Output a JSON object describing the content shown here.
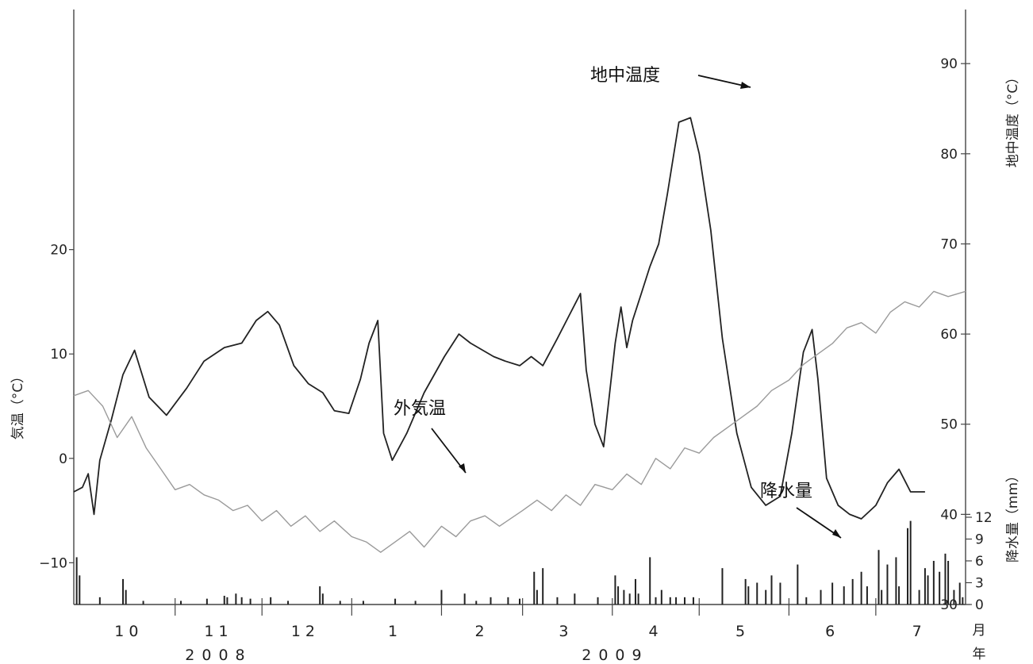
{
  "chart_data": {
    "type": "line",
    "annotations": {
      "soil_temp": "地中温度",
      "air_temp": "外気温",
      "precip": "降水量"
    },
    "axes": {
      "left": {
        "label": "気温（°C）",
        "range": [
          -14,
          43
        ],
        "ticks": [
          -10,
          0,
          10,
          20
        ],
        "tick_labels": [
          "−10",
          "0",
          "10",
          "20"
        ]
      },
      "right_soil": {
        "label": "地中温度（°C）",
        "range": [
          30,
          96
        ],
        "ticks": [
          30,
          40,
          50,
          60,
          70,
          80,
          90
        ],
        "tick_labels": [
          "30",
          "40",
          "50",
          "60",
          "70",
          "80",
          "90"
        ]
      },
      "right_precip": {
        "label": "降水量（mm）",
        "range": [
          0,
          12
        ],
        "ticks": [
          0,
          3,
          6,
          9,
          12
        ],
        "tick_labels": [
          "0",
          "3",
          "6",
          "9",
          "12"
        ]
      },
      "x": {
        "unit_month": "月",
        "unit_year": "年",
        "start": "2008-09-26",
        "end": "2009-07-31",
        "month_boundaries": [
          "2008-10-31",
          "2008-11-30",
          "2008-12-31",
          "2009-01-31",
          "2009-02-28",
          "2009-03-31",
          "2009-04-30",
          "2009-05-31",
          "2009-06-30"
        ],
        "month_labels": [
          {
            "text": "10",
            "date": "2008-10-15"
          },
          {
            "text": "11",
            "date": "2008-11-15"
          },
          {
            "text": "12",
            "date": "2008-12-15"
          },
          {
            "text": "1",
            "date": "2009-01-15"
          },
          {
            "text": "2",
            "date": "2009-02-14"
          },
          {
            "text": "3",
            "date": "2009-03-15"
          },
          {
            "text": "4",
            "date": "2009-04-15"
          },
          {
            "text": "5",
            "date": "2009-05-15"
          },
          {
            "text": "6",
            "date": "2009-06-15"
          },
          {
            "text": "7",
            "date": "2009-07-15"
          }
        ],
        "year_labels": [
          {
            "text": "2008",
            "date": "2008-11-15"
          },
          {
            "text": "2009",
            "date": "2009-04-01"
          }
        ]
      }
    },
    "series": [
      {
        "key": "soil_temperature",
        "axis": "right_soil",
        "color": "#222222",
        "points": [
          [
            "2008-09-26",
            42.5
          ],
          [
            "2008-09-29",
            43.0
          ],
          [
            "2008-10-01",
            44.5
          ],
          [
            "2008-10-03",
            40.0
          ],
          [
            "2008-10-05",
            46.0
          ],
          [
            "2008-10-09",
            50.5
          ],
          [
            "2008-10-13",
            55.5
          ],
          [
            "2008-10-17",
            58.2
          ],
          [
            "2008-10-22",
            53.0
          ],
          [
            "2008-10-28",
            51.0
          ],
          [
            "2008-11-04",
            54.0
          ],
          [
            "2008-11-10",
            57.0
          ],
          [
            "2008-11-17",
            58.5
          ],
          [
            "2008-11-23",
            59.0
          ],
          [
            "2008-11-28",
            61.5
          ],
          [
            "2008-12-02",
            62.5
          ],
          [
            "2008-12-06",
            61.0
          ],
          [
            "2008-12-11",
            56.5
          ],
          [
            "2008-12-16",
            54.5
          ],
          [
            "2008-12-21",
            53.5
          ],
          [
            "2008-12-25",
            51.5
          ],
          [
            "2008-12-30",
            51.2
          ],
          [
            "2009-01-03",
            55.0
          ],
          [
            "2009-01-06",
            59.0
          ],
          [
            "2009-01-09",
            61.5
          ],
          [
            "2009-01-11",
            49.0
          ],
          [
            "2009-01-14",
            46.0
          ],
          [
            "2009-01-19",
            49.0
          ],
          [
            "2009-01-25",
            53.5
          ],
          [
            "2009-02-01",
            57.5
          ],
          [
            "2009-02-06",
            60.0
          ],
          [
            "2009-02-10",
            59.0
          ],
          [
            "2009-02-18",
            57.5
          ],
          [
            "2009-02-22",
            57.0
          ],
          [
            "2009-02-27",
            56.5
          ],
          [
            "2009-03-03",
            57.5
          ],
          [
            "2009-03-07",
            56.5
          ],
          [
            "2009-03-12",
            59.5
          ],
          [
            "2009-03-16",
            62.0
          ],
          [
            "2009-03-20",
            64.5
          ],
          [
            "2009-03-22",
            56.0
          ],
          [
            "2009-03-25",
            50.0
          ],
          [
            "2009-03-28",
            47.5
          ],
          [
            "2009-04-01",
            59.0
          ],
          [
            "2009-04-03",
            63.0
          ],
          [
            "2009-04-05",
            58.5
          ],
          [
            "2009-04-07",
            61.5
          ],
          [
            "2009-04-10",
            64.5
          ],
          [
            "2009-04-13",
            67.5
          ],
          [
            "2009-04-16",
            70.0
          ],
          [
            "2009-04-19",
            75.5
          ],
          [
            "2009-04-23",
            83.5
          ],
          [
            "2009-04-27",
            84.0
          ],
          [
            "2009-04-30",
            80.0
          ],
          [
            "2009-05-04",
            71.5
          ],
          [
            "2009-05-08",
            59.5
          ],
          [
            "2009-05-13",
            49.0
          ],
          [
            "2009-05-18",
            43.0
          ],
          [
            "2009-05-23",
            41.0
          ],
          [
            "2009-05-28",
            42.0
          ],
          [
            "2009-06-01",
            49.0
          ],
          [
            "2009-06-05",
            58.0
          ],
          [
            "2009-06-08",
            60.5
          ],
          [
            "2009-06-10",
            55.0
          ],
          [
            "2009-06-13",
            44.0
          ],
          [
            "2009-06-17",
            41.0
          ],
          [
            "2009-06-21",
            40.0
          ],
          [
            "2009-06-25",
            39.5
          ],
          [
            "2009-06-30",
            41.0
          ],
          [
            "2009-07-04",
            43.5
          ],
          [
            "2009-07-08",
            45.0
          ],
          [
            "2009-07-12",
            42.5
          ],
          [
            "2009-07-17",
            42.5
          ]
        ]
      },
      {
        "key": "air_temperature",
        "axis": "left",
        "color": "#9a9a9a",
        "points": [
          [
            "2008-09-26",
            6.0
          ],
          [
            "2008-10-01",
            6.5
          ],
          [
            "2008-10-06",
            5.0
          ],
          [
            "2008-10-11",
            2.0
          ],
          [
            "2008-10-16",
            4.0
          ],
          [
            "2008-10-21",
            1.0
          ],
          [
            "2008-10-26",
            -1.0
          ],
          [
            "2008-10-31",
            -3.0
          ],
          [
            "2008-11-05",
            -2.5
          ],
          [
            "2008-11-10",
            -3.5
          ],
          [
            "2008-11-15",
            -4.0
          ],
          [
            "2008-11-20",
            -5.0
          ],
          [
            "2008-11-25",
            -4.5
          ],
          [
            "2008-11-30",
            -6.0
          ],
          [
            "2008-12-05",
            -5.0
          ],
          [
            "2008-12-10",
            -6.5
          ],
          [
            "2008-12-15",
            -5.5
          ],
          [
            "2008-12-20",
            -7.0
          ],
          [
            "2008-12-25",
            -6.0
          ],
          [
            "2008-12-31",
            -7.5
          ],
          [
            "2009-01-05",
            -8.0
          ],
          [
            "2009-01-10",
            -9.0
          ],
          [
            "2009-01-15",
            -8.0
          ],
          [
            "2009-01-20",
            -7.0
          ],
          [
            "2009-01-25",
            -8.5
          ],
          [
            "2009-01-31",
            -6.5
          ],
          [
            "2009-02-05",
            -7.5
          ],
          [
            "2009-02-10",
            -6.0
          ],
          [
            "2009-02-15",
            -5.5
          ],
          [
            "2009-02-20",
            -6.5
          ],
          [
            "2009-02-28",
            -5.0
          ],
          [
            "2009-03-05",
            -4.0
          ],
          [
            "2009-03-10",
            -5.0
          ],
          [
            "2009-03-15",
            -3.5
          ],
          [
            "2009-03-20",
            -4.5
          ],
          [
            "2009-03-25",
            -2.5
          ],
          [
            "2009-03-31",
            -3.0
          ],
          [
            "2009-04-05",
            -1.5
          ],
          [
            "2009-04-10",
            -2.5
          ],
          [
            "2009-04-15",
            0.0
          ],
          [
            "2009-04-20",
            -1.0
          ],
          [
            "2009-04-25",
            1.0
          ],
          [
            "2009-04-30",
            0.5
          ],
          [
            "2009-05-05",
            2.0
          ],
          [
            "2009-05-10",
            3.0
          ],
          [
            "2009-05-15",
            4.0
          ],
          [
            "2009-05-20",
            5.0
          ],
          [
            "2009-05-25",
            6.5
          ],
          [
            "2009-05-31",
            7.5
          ],
          [
            "2009-06-05",
            9.0
          ],
          [
            "2009-06-10",
            10.0
          ],
          [
            "2009-06-15",
            11.0
          ],
          [
            "2009-06-20",
            12.5
          ],
          [
            "2009-06-25",
            13.0
          ],
          [
            "2009-06-30",
            12.0
          ],
          [
            "2009-07-05",
            14.0
          ],
          [
            "2009-07-10",
            15.0
          ],
          [
            "2009-07-15",
            14.5
          ],
          [
            "2009-07-20",
            16.0
          ],
          [
            "2009-07-25",
            15.5
          ],
          [
            "2009-07-31",
            16.0
          ]
        ]
      }
    ],
    "precipitation_bars": {
      "axis": "right_precip",
      "color": "#222222",
      "values": [
        [
          "2008-09-27",
          6.5
        ],
        [
          "2008-09-28",
          4.0
        ],
        [
          "2008-10-05",
          1.0
        ],
        [
          "2008-10-13",
          3.5
        ],
        [
          "2008-10-14",
          2.0
        ],
        [
          "2008-10-20",
          0.5
        ],
        [
          "2008-11-02",
          0.5
        ],
        [
          "2008-11-11",
          0.8
        ],
        [
          "2008-11-17",
          1.2
        ],
        [
          "2008-11-18",
          1.0
        ],
        [
          "2008-11-21",
          1.5
        ],
        [
          "2008-11-23",
          1.0
        ],
        [
          "2008-11-26",
          0.8
        ],
        [
          "2008-12-03",
          1.0
        ],
        [
          "2008-12-09",
          0.5
        ],
        [
          "2008-12-20",
          2.5
        ],
        [
          "2008-12-21",
          1.5
        ],
        [
          "2008-12-27",
          0.5
        ],
        [
          "2009-01-04",
          0.5
        ],
        [
          "2009-01-15",
          0.8
        ],
        [
          "2009-01-22",
          0.5
        ],
        [
          "2009-01-31",
          2.0
        ],
        [
          "2009-02-08",
          1.5
        ],
        [
          "2009-02-12",
          0.5
        ],
        [
          "2009-02-17",
          1.0
        ],
        [
          "2009-02-23",
          1.0
        ],
        [
          "2009-02-27",
          0.8
        ],
        [
          "2009-03-04",
          4.5
        ],
        [
          "2009-03-05",
          2.0
        ],
        [
          "2009-03-07",
          5.0
        ],
        [
          "2009-03-12",
          1.0
        ],
        [
          "2009-03-18",
          1.5
        ],
        [
          "2009-03-26",
          1.0
        ],
        [
          "2009-04-01",
          4.0
        ],
        [
          "2009-04-02",
          2.5
        ],
        [
          "2009-04-04",
          2.0
        ],
        [
          "2009-04-06",
          1.5
        ],
        [
          "2009-04-08",
          3.5
        ],
        [
          "2009-04-09",
          1.5
        ],
        [
          "2009-04-13",
          6.5
        ],
        [
          "2009-04-15",
          1.0
        ],
        [
          "2009-04-17",
          2.0
        ],
        [
          "2009-04-20",
          1.0
        ],
        [
          "2009-04-22",
          1.0
        ],
        [
          "2009-04-25",
          1.0
        ],
        [
          "2009-04-28",
          1.0
        ],
        [
          "2009-05-08",
          5.0
        ],
        [
          "2009-05-16",
          3.5
        ],
        [
          "2009-05-17",
          2.5
        ],
        [
          "2009-05-20",
          3.0
        ],
        [
          "2009-05-23",
          2.0
        ],
        [
          "2009-05-25",
          4.0
        ],
        [
          "2009-05-28",
          3.0
        ],
        [
          "2009-06-03",
          5.5
        ],
        [
          "2009-06-06",
          1.0
        ],
        [
          "2009-06-11",
          2.0
        ],
        [
          "2009-06-15",
          3.0
        ],
        [
          "2009-06-19",
          2.5
        ],
        [
          "2009-06-22",
          3.5
        ],
        [
          "2009-06-25",
          4.5
        ],
        [
          "2009-06-27",
          2.5
        ],
        [
          "2009-07-01",
          7.5
        ],
        [
          "2009-07-02",
          2.0
        ],
        [
          "2009-07-04",
          5.5
        ],
        [
          "2009-07-07",
          6.5
        ],
        [
          "2009-07-08",
          2.5
        ],
        [
          "2009-07-11",
          10.5
        ],
        [
          "2009-07-12",
          11.5
        ],
        [
          "2009-07-15",
          2.0
        ],
        [
          "2009-07-17",
          5.0
        ],
        [
          "2009-07-18",
          4.0
        ],
        [
          "2009-07-20",
          6.0
        ],
        [
          "2009-07-22",
          4.5
        ],
        [
          "2009-07-24",
          7.0
        ],
        [
          "2009-07-25",
          6.0
        ],
        [
          "2009-07-27",
          2.0
        ],
        [
          "2009-07-29",
          3.0
        ],
        [
          "2009-07-30",
          1.0
        ]
      ]
    }
  }
}
